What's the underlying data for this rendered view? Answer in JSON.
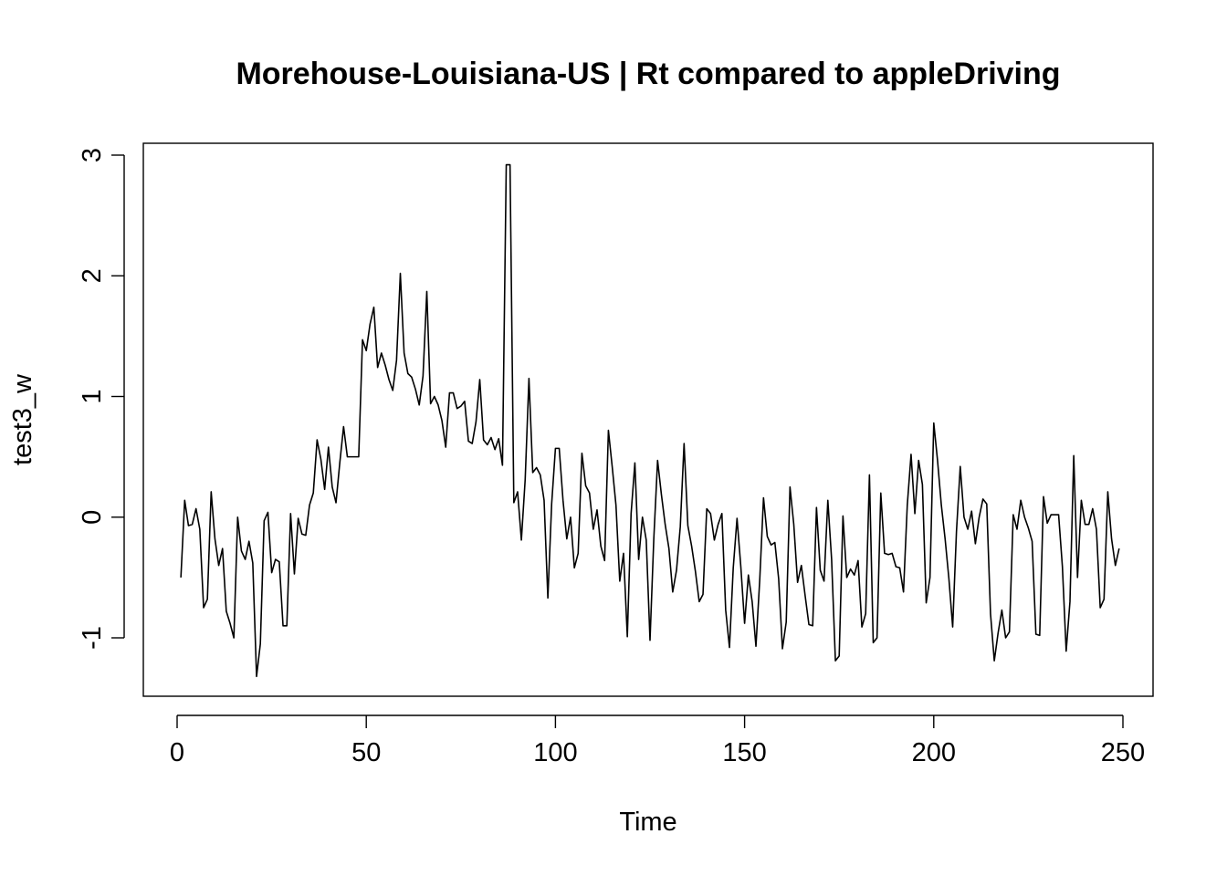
{
  "chart_data": {
    "type": "line",
    "title": "Morehouse-Louisiana-US | Rt compared to appleDriving",
    "xlabel": "Time",
    "ylabel": "test3_w",
    "xlim": [
      1,
      248
    ],
    "ylim": [
      -1.3,
      3.0
    ],
    "x_ticks": [
      0,
      50,
      100,
      150,
      200,
      250
    ],
    "x_tick_labels": [
      "0",
      "50",
      "100",
      "150",
      "200",
      "250"
    ],
    "y_ticks": [
      -1,
      0,
      1,
      2,
      3
    ],
    "y_tick_labels": [
      "-1",
      "0",
      "1",
      "2",
      "3"
    ],
    "grid": false,
    "legend": "none",
    "line_color": "#000000",
    "series": [
      {
        "x_start": 1,
        "x_step": 1,
        "values": [
          -0.5,
          0.14,
          -0.07,
          -0.06,
          0.07,
          -0.1,
          -0.75,
          -0.68,
          0.21,
          -0.18,
          -0.4,
          -0.26,
          -0.78,
          -0.88,
          -1.0,
          0.0,
          -0.28,
          -0.35,
          -0.2,
          -0.38,
          -1.32,
          -1.05,
          -0.03,
          0.04,
          -0.46,
          -0.35,
          -0.37,
          -0.9,
          -0.9,
          0.03,
          -0.47,
          -0.01,
          -0.14,
          -0.15,
          0.1,
          0.2,
          0.64,
          0.48,
          0.23,
          0.58,
          0.25,
          0.12,
          0.45,
          0.75,
          0.5,
          0.5,
          0.5,
          0.5,
          1.47,
          1.38,
          1.6,
          1.74,
          1.24,
          1.36,
          1.26,
          1.14,
          1.05,
          1.3,
          2.02,
          1.36,
          1.19,
          1.16,
          1.06,
          0.93,
          1.17,
          1.87,
          0.94,
          1.0,
          0.93,
          0.8,
          0.58,
          1.03,
          1.03,
          0.9,
          0.92,
          0.96,
          0.63,
          0.61,
          0.79,
          1.14,
          0.64,
          0.6,
          0.66,
          0.56,
          0.65,
          0.43,
          2.92,
          2.92,
          0.12,
          0.21,
          -0.19,
          0.31,
          1.15,
          0.37,
          0.41,
          0.35,
          0.14,
          -0.67,
          0.11,
          0.57,
          0.57,
          0.14,
          -0.18,
          0.0,
          -0.42,
          -0.3,
          0.53,
          0.26,
          0.2,
          -0.1,
          0.06,
          -0.24,
          -0.36,
          0.72,
          0.42,
          0.1,
          -0.53,
          -0.3,
          -0.99,
          0.03,
          0.45,
          -0.35,
          0.0,
          -0.19,
          -1.02,
          -0.18,
          0.47,
          0.19,
          -0.06,
          -0.26,
          -0.62,
          -0.44,
          -0.08,
          0.61,
          -0.07,
          -0.24,
          -0.45,
          -0.7,
          -0.64,
          0.07,
          0.03,
          -0.19,
          -0.06,
          0.03,
          -0.77,
          -1.08,
          -0.42,
          -0.01,
          -0.41,
          -0.88,
          -0.48,
          -0.7,
          -1.07,
          -0.52,
          0.16,
          -0.16,
          -0.23,
          -0.21,
          -0.51,
          -1.09,
          -0.87,
          0.25,
          -0.06,
          -0.54,
          -0.4,
          -0.65,
          -0.89,
          -0.9,
          0.08,
          -0.44,
          -0.53,
          0.14,
          -0.35,
          -1.19,
          -1.15,
          0.01,
          -0.5,
          -0.43,
          -0.48,
          -0.36,
          -0.91,
          -0.8,
          0.35,
          -1.04,
          -1.0,
          0.2,
          -0.3,
          -0.31,
          -0.3,
          -0.41,
          -0.42,
          -0.62,
          0.1,
          0.52,
          0.03,
          0.47,
          0.27,
          -0.71,
          -0.5,
          0.78,
          0.47,
          0.1,
          -0.18,
          -0.51,
          -0.91,
          -0.12,
          0.42,
          0.0,
          -0.1,
          0.05,
          -0.22,
          0.0,
          0.15,
          0.11,
          -0.8,
          -1.19,
          -0.96,
          -0.77,
          -1.0,
          -0.95,
          0.02,
          -0.1,
          0.14,
          0.0,
          -0.09,
          -0.2,
          -0.97,
          -0.98,
          0.17,
          -0.05,
          0.02,
          0.02,
          0.02,
          -0.41,
          -1.11,
          -0.7,
          0.51,
          -0.5,
          0.14,
          -0.06,
          -0.06,
          0.07,
          -0.1,
          -0.75,
          -0.68,
          0.21,
          -0.18,
          -0.4,
          -0.26
        ]
      }
    ]
  }
}
